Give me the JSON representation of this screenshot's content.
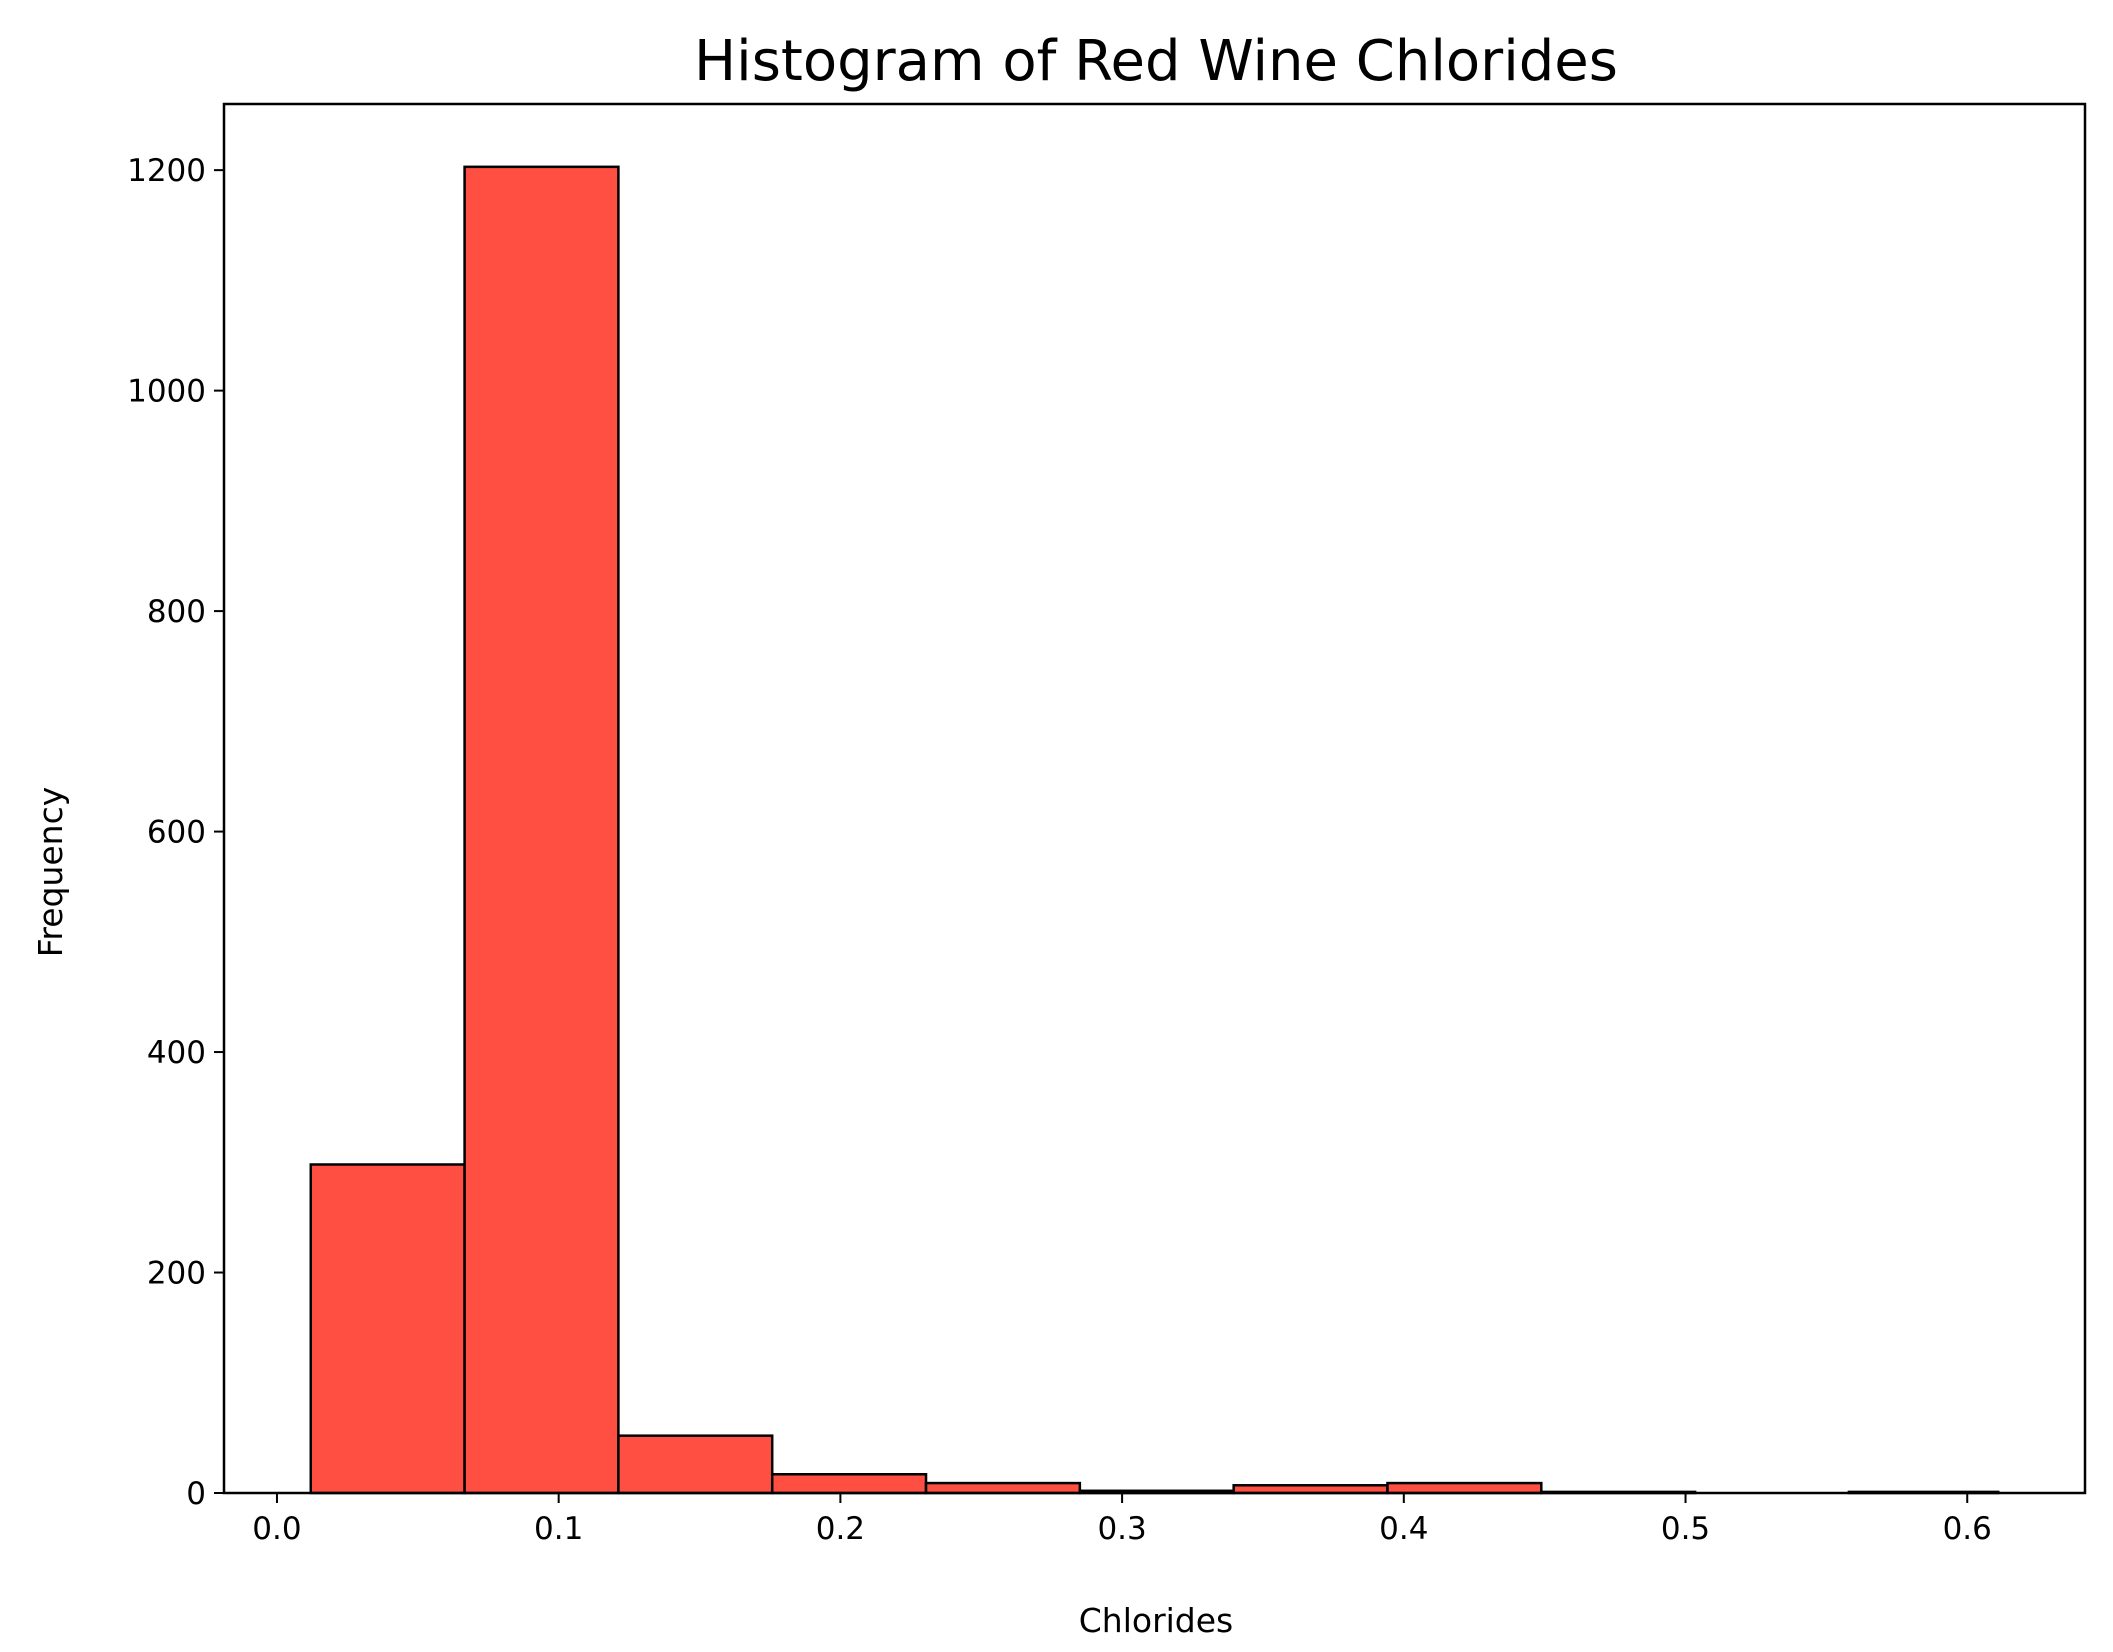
{
  "chart_data": {
    "type": "bar",
    "title": "Histogram of Red Wine Chlorides",
    "xlabel": "Chlorides",
    "ylabel": "Frequency",
    "xlim": [
      -0.0188,
      0.6418
    ],
    "ylim": [
      0,
      1260
    ],
    "x_ticks": [
      {
        "value": 0.0,
        "label": "0.0"
      },
      {
        "value": 0.1,
        "label": "0.1"
      },
      {
        "value": 0.2,
        "label": "0.2"
      },
      {
        "value": 0.3,
        "label": "0.3"
      },
      {
        "value": 0.4,
        "label": "0.4"
      },
      {
        "value": 0.5,
        "label": "0.5"
      },
      {
        "value": 0.6,
        "label": "0.6"
      }
    ],
    "y_ticks": [
      {
        "value": 0,
        "label": "0"
      },
      {
        "value": 200,
        "label": "200"
      },
      {
        "value": 400,
        "label": "400"
      },
      {
        "value": 600,
        "label": "600"
      },
      {
        "value": 800,
        "label": "800"
      },
      {
        "value": 1000,
        "label": "1000"
      },
      {
        "value": 1200,
        "label": "1200"
      }
    ],
    "bins": [
      {
        "start": 0.012,
        "end": 0.0666,
        "count": 298
      },
      {
        "start": 0.0666,
        "end": 0.1212,
        "count": 1203
      },
      {
        "start": 0.1212,
        "end": 0.1758,
        "count": 52
      },
      {
        "start": 0.1758,
        "end": 0.2304,
        "count": 17
      },
      {
        "start": 0.2304,
        "end": 0.285,
        "count": 9
      },
      {
        "start": 0.285,
        "end": 0.3396,
        "count": 2
      },
      {
        "start": 0.3396,
        "end": 0.3942,
        "count": 7
      },
      {
        "start": 0.3942,
        "end": 0.4488,
        "count": 9
      },
      {
        "start": 0.4488,
        "end": 0.5034,
        "count": 1
      },
      {
        "start": 0.5034,
        "end": 0.558,
        "count": 0
      },
      {
        "start": 0.558,
        "end": 0.611,
        "count": 1
      }
    ],
    "grid": false,
    "legend": "none",
    "colors": {
      "bar_fill": "#ff4f42",
      "bar_edge": "#000000",
      "axes": "#000000",
      "background": "#ffffff"
    }
  }
}
